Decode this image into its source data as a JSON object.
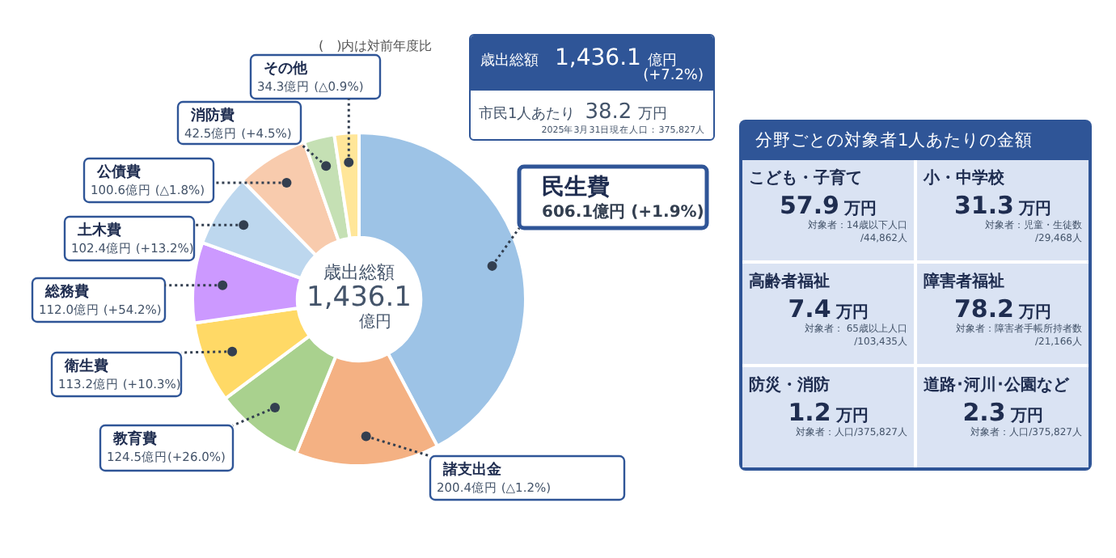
{
  "chart_data": [
    {
      "type": "donut",
      "categories": [
        "民生費",
        "諸支出金",
        "教育費",
        "衛生費",
        "総務費",
        "土木費",
        "公債費",
        "消防費",
        "その他"
      ],
      "values": [
        606.1,
        200.4,
        124.5,
        113.2,
        112.0,
        102.4,
        100.6,
        42.5,
        34.3
      ],
      "value_labels": [
        "606.1億円 (+1.9%)",
        "200.4億円 (△1.2%)",
        "124.5億円(+26.0%)",
        "113.2億円 (+10.3%)",
        "112.0億円 (+54.2%)",
        "102.4億円 (+13.2%)",
        "100.6億円 (△1.8%)",
        "42.5億円 (+4.5%)",
        "34.3億円 (△0.9%)"
      ],
      "colors": [
        "#9dc3e6",
        "#f4b183",
        "#a9d18e",
        "#ffd966",
        "#cc99ff",
        "#bdd7ee",
        "#f8cbad",
        "#c5e0b4",
        "#ffe699"
      ],
      "legend": false,
      "annotations": [
        "(　)内は対前年度比",
        "歳出総額",
        "1,436.1",
        "億円",
        "歳出総額",
        "1,436.1",
        "億円",
        "(+7.2%)",
        "市民1人あたり",
        "38.2",
        "万円",
        "2025年3月31日現在人口：375,827人"
      ]
    },
    {
      "type": "other",
      "title": "分野ごとの対象者1人あたりの金額",
      "annotations": [
        "こども・子育て",
        "57.9",
        "万円",
        "対象者：14歳以下人口\n/44,862人",
        "小・中学校",
        "31.3",
        "万円",
        "対象者：児童・生徒数\n/29,468人",
        "高齢者福祉",
        "7.4",
        "万円",
        "対象者： 65歳以上人口\n/103,435人",
        "障害者福祉",
        "78.2",
        "万円",
        "対象者：障害者手帳所持者数\n/21,166人",
        "防災・消防",
        "1.2",
        "万円",
        "対象者：人口/375,827人",
        "道路･河川･公園など",
        "2.3",
        "万円",
        "対象者：人口/375,827人"
      ]
    }
  ]
}
